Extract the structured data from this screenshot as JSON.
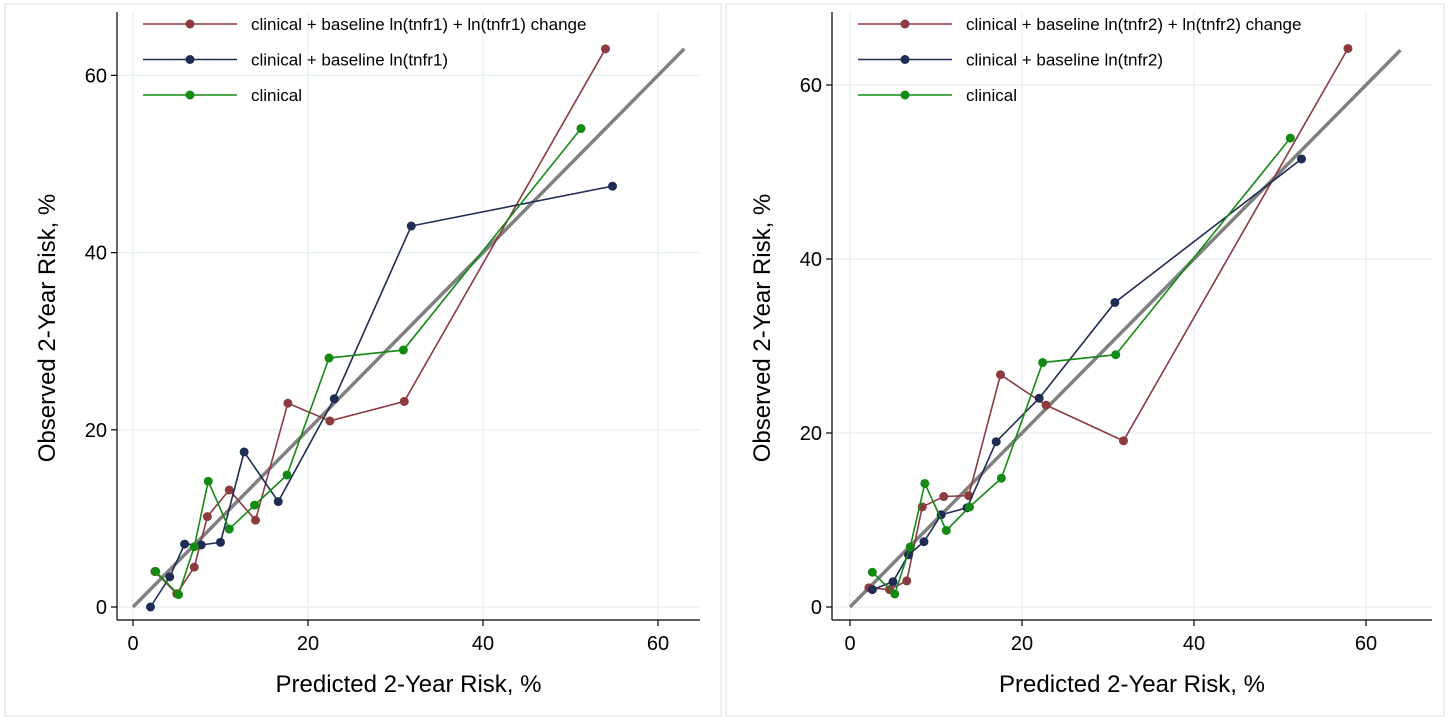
{
  "chart_data": [
    {
      "type": "line",
      "xlabel": "Predicted 2-Year Risk, %",
      "ylabel": "Observed 2-Year Risk, %",
      "xlim": [
        0,
        64
      ],
      "ylim": [
        0,
        64
      ],
      "xticks": [
        0,
        20,
        40,
        60
      ],
      "yticks": [
        0,
        20,
        40,
        60
      ],
      "grid": true,
      "legend_position": "top-left",
      "reference_line": {
        "from": [
          0,
          0
        ],
        "to": [
          63,
          63
        ],
        "color": "#808080"
      },
      "series": [
        {
          "name": "clinical + baseline ln(tnfr1) + ln(tnfr1) change",
          "color": "#8b3a3e",
          "points": [
            [
              2.5,
              4.0
            ],
            [
              5.0,
              1.5
            ],
            [
              7.0,
              4.5
            ],
            [
              8.5,
              10.2
            ],
            [
              11.0,
              13.2
            ],
            [
              14.0,
              9.8
            ],
            [
              17.7,
              23.0
            ],
            [
              22.5,
              21.0
            ],
            [
              31.0,
              23.2
            ],
            [
              54.0,
              63.0
            ]
          ]
        },
        {
          "name": "clinical + baseline ln(tnfr1)",
          "color": "#1f2d54",
          "points": [
            [
              2.0,
              0.0
            ],
            [
              4.2,
              3.4
            ],
            [
              5.9,
              7.1
            ],
            [
              7.8,
              7.0
            ],
            [
              10.0,
              7.3
            ],
            [
              12.7,
              17.5
            ],
            [
              16.6,
              11.9
            ],
            [
              23.0,
              23.5
            ],
            [
              31.8,
              43.0
            ],
            [
              54.8,
              47.5
            ]
          ]
        },
        {
          "name": "clinical",
          "color": "#138a13",
          "points": [
            [
              2.6,
              4.0
            ],
            [
              5.2,
              1.4
            ],
            [
              7.0,
              6.8
            ],
            [
              8.6,
              14.2
            ],
            [
              11.0,
              8.8
            ],
            [
              13.9,
              11.5
            ],
            [
              17.6,
              14.9
            ],
            [
              22.4,
              28.1
            ],
            [
              30.9,
              29.0
            ],
            [
              51.2,
              54.0
            ]
          ]
        }
      ]
    },
    {
      "type": "line",
      "xlabel": "Predicted 2-Year Risk, %",
      "ylabel": "Observed 2-Year Risk, %",
      "xlim": [
        0,
        64
      ],
      "ylim": [
        0,
        66
      ],
      "xticks": [
        0,
        20,
        40,
        60
      ],
      "yticks": [
        0,
        20,
        40,
        60
      ],
      "grid": true,
      "legend_position": "top-left",
      "reference_line": {
        "from": [
          0,
          0
        ],
        "to": [
          64,
          64
        ],
        "color": "#808080"
      },
      "series": [
        {
          "name": "clinical + baseline ln(tnfr2) + ln(tnfr2) change",
          "color": "#8b3a3e",
          "points": [
            [
              2.2,
              2.2
            ],
            [
              4.6,
              2.0
            ],
            [
              6.6,
              3.0
            ],
            [
              8.4,
              11.5
            ],
            [
              10.9,
              12.7
            ],
            [
              13.8,
              12.8
            ],
            [
              17.5,
              26.7
            ],
            [
              22.8,
              23.2
            ],
            [
              31.8,
              19.1
            ],
            [
              57.9,
              64.2
            ]
          ]
        },
        {
          "name": "clinical + baseline ln(tnfr2)",
          "color": "#1f2d54",
          "points": [
            [
              2.6,
              2.0
            ],
            [
              5.0,
              2.9
            ],
            [
              6.8,
              6.0
            ],
            [
              8.6,
              7.5
            ],
            [
              10.6,
              10.6
            ],
            [
              13.6,
              11.4
            ],
            [
              17.0,
              19.0
            ],
            [
              22.0,
              24.0
            ],
            [
              30.8,
              35.0
            ],
            [
              52.5,
              51.5
            ]
          ]
        },
        {
          "name": "clinical",
          "color": "#138a13",
          "points": [
            [
              2.6,
              4.0
            ],
            [
              5.2,
              1.5
            ],
            [
              7.0,
              6.9
            ],
            [
              8.7,
              14.2
            ],
            [
              11.2,
              8.8
            ],
            [
              13.9,
              11.5
            ],
            [
              17.6,
              14.8
            ],
            [
              22.4,
              28.1
            ],
            [
              30.9,
              29.0
            ],
            [
              51.2,
              53.9
            ]
          ]
        }
      ]
    }
  ]
}
